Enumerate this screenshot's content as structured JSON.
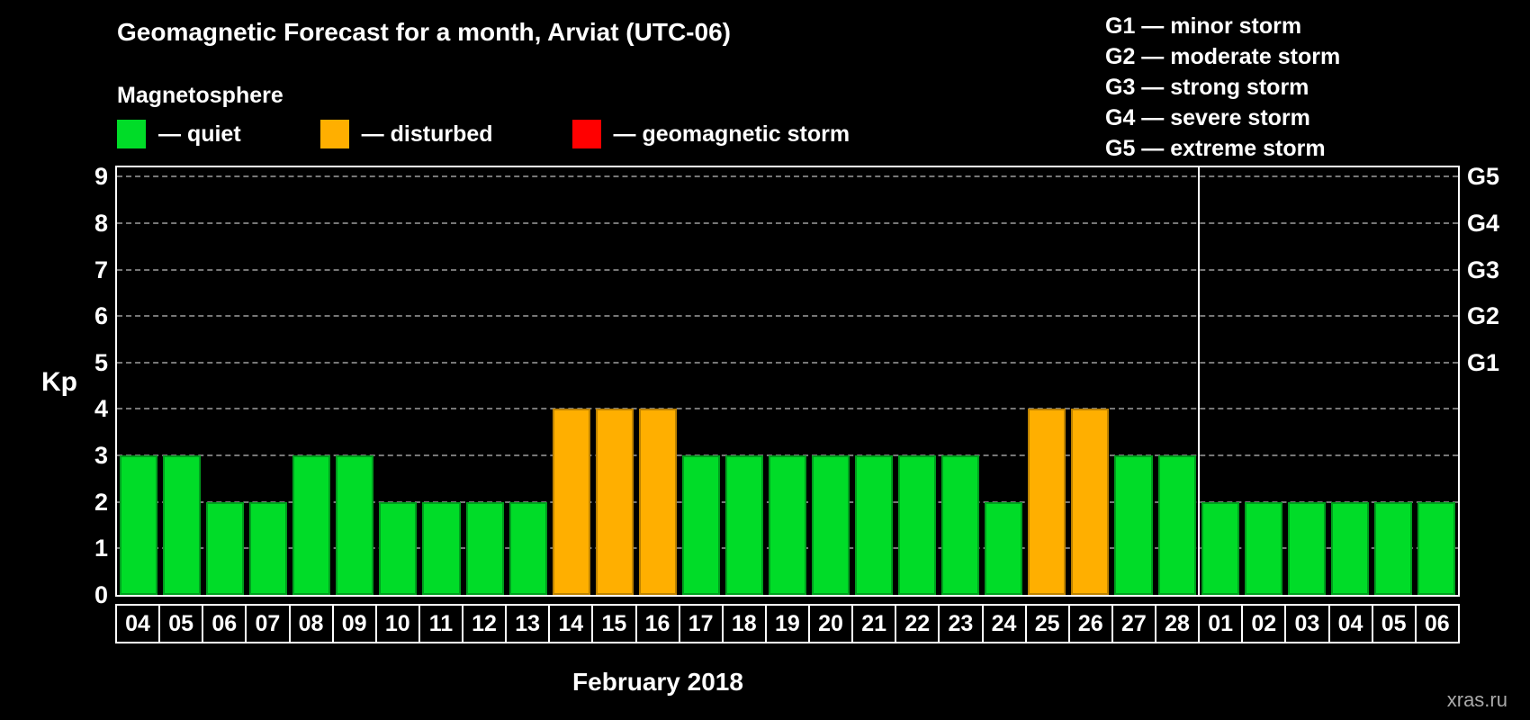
{
  "title": "Geomagnetic Forecast for a month, Arviat (UTC-06)",
  "subtitle": "Magnetosphere",
  "legend": [
    {
      "label": "— quiet",
      "color": "#00dc28"
    },
    {
      "label": "— disturbed",
      "color": "#ffaf00"
    },
    {
      "label": "— geomagnetic storm",
      "color": "#ff0000"
    }
  ],
  "storm_scale_legend": [
    "G1 — minor storm",
    "G2 — moderate storm",
    "G3 — strong storm",
    "G4 — severe storm",
    "G5 — extreme storm"
  ],
  "watermark": "xras.ru",
  "chart_data": {
    "type": "bar",
    "title": "Geomagnetic Forecast for a month, Arviat (UTC-06)",
    "xlabel": "February 2018",
    "ylabel": "Kp",
    "ylim": [
      0,
      9.2
    ],
    "yticks": [
      0,
      1,
      2,
      3,
      4,
      5,
      6,
      7,
      8,
      9
    ],
    "grid": "dashed horizontal at each Kp level",
    "right_axis_labels": [
      {
        "label": "G1",
        "y": 5
      },
      {
        "label": "G2",
        "y": 6
      },
      {
        "label": "G3",
        "y": 7
      },
      {
        "label": "G4",
        "y": 8
      },
      {
        "label": "G5",
        "y": 9
      }
    ],
    "month_separator_after_index": 24,
    "categories": [
      "04",
      "05",
      "06",
      "07",
      "08",
      "09",
      "10",
      "11",
      "12",
      "13",
      "14",
      "15",
      "16",
      "17",
      "18",
      "19",
      "20",
      "21",
      "22",
      "23",
      "24",
      "25",
      "26",
      "27",
      "28",
      "01",
      "02",
      "03",
      "04",
      "05",
      "06"
    ],
    "values": [
      3,
      3,
      2,
      2,
      3,
      3,
      2,
      2,
      2,
      2,
      4,
      4,
      4,
      3,
      3,
      3,
      3,
      3,
      3,
      3,
      2,
      4,
      4,
      3,
      3,
      2,
      2,
      2,
      2,
      2,
      2
    ],
    "statuses": [
      "quiet",
      "quiet",
      "quiet",
      "quiet",
      "quiet",
      "quiet",
      "quiet",
      "quiet",
      "quiet",
      "quiet",
      "disturbed",
      "disturbed",
      "disturbed",
      "quiet",
      "quiet",
      "quiet",
      "quiet",
      "quiet",
      "quiet",
      "quiet",
      "quiet",
      "disturbed",
      "disturbed",
      "quiet",
      "quiet",
      "quiet",
      "quiet",
      "quiet",
      "quiet",
      "quiet",
      "quiet"
    ],
    "colors": {
      "quiet": {
        "fill": "#00dc28",
        "stroke": "#009e1e"
      },
      "disturbed": {
        "fill": "#ffaf00",
        "stroke": "#bd8200"
      },
      "storm": {
        "fill": "#ff0000",
        "stroke": "#b00000"
      }
    }
  }
}
